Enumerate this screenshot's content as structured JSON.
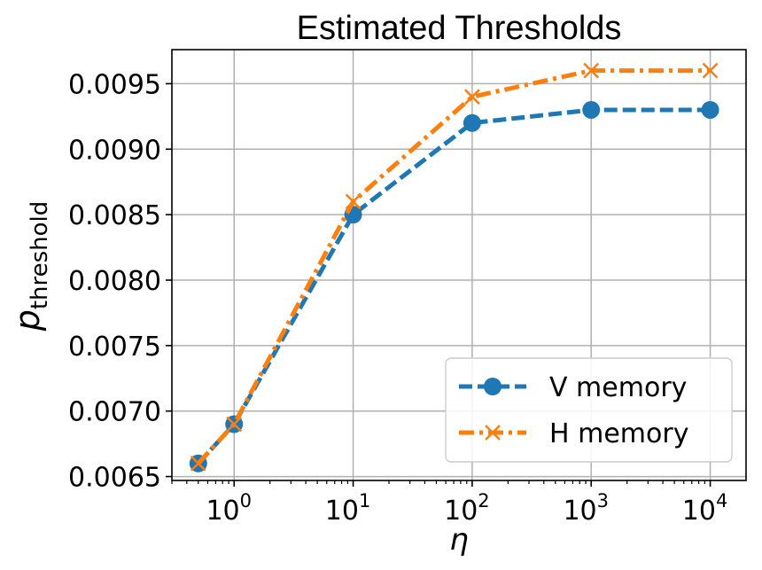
{
  "chart_data": {
    "type": "line",
    "title": "Estimated Thresholds",
    "xlabel": "η",
    "ylabel_main": "p",
    "ylabel_sub": "threshold",
    "xscale": "log",
    "xlim": [
      0.3,
      20000
    ],
    "ylim": [
      0.00647,
      0.00976
    ],
    "grid": true,
    "legend_position": "lower-right",
    "x": [
      0.5,
      1,
      10,
      100,
      1000,
      10000
    ],
    "x_ticks": [
      {
        "value": 1,
        "base": "10",
        "exp": "0"
      },
      {
        "value": 10,
        "base": "10",
        "exp": "1"
      },
      {
        "value": 100,
        "base": "10",
        "exp": "2"
      },
      {
        "value": 1000,
        "base": "10",
        "exp": "3"
      },
      {
        "value": 10000,
        "base": "10",
        "exp": "4"
      }
    ],
    "y_ticks": [
      {
        "value": 0.0065,
        "label": "0.0065"
      },
      {
        "value": 0.007,
        "label": "0.0070"
      },
      {
        "value": 0.0075,
        "label": "0.0075"
      },
      {
        "value": 0.008,
        "label": "0.0080"
      },
      {
        "value": 0.0085,
        "label": "0.0085"
      },
      {
        "value": 0.009,
        "label": "0.0090"
      },
      {
        "value": 0.0095,
        "label": "0.0095"
      }
    ],
    "series": [
      {
        "name": "V memory",
        "color": "#1f77b4",
        "marker": "circle",
        "linestyle": "dashed",
        "values": [
          0.0066,
          0.0069,
          0.0085,
          0.0092,
          0.0093,
          0.0093
        ]
      },
      {
        "name": "H memory",
        "color": "#ff7f0e",
        "marker": "x",
        "linestyle": "dashdot",
        "values": [
          0.0066,
          0.0069,
          0.0086,
          0.0094,
          0.0096,
          0.0096
        ]
      }
    ]
  }
}
